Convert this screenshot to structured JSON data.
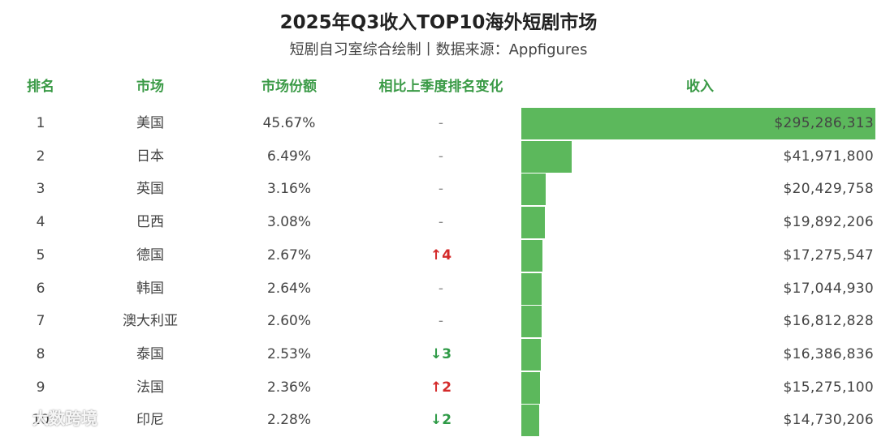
{
  "chart_data": {
    "type": "table",
    "title": "2025年Q3收入TOP10海外短剧市场",
    "subtitle": "短剧自习室综合绘制丨数据来源：Appfigures",
    "columns": [
      "排名",
      "市场",
      "市场份额",
      "相比上季度排名变化",
      "收入"
    ],
    "rows": [
      {
        "rank": "1",
        "market": "美国",
        "share": "45.67%",
        "change": "-",
        "change_dir": "none",
        "revenue": "$295,286,313",
        "revenue_value": 295286313
      },
      {
        "rank": "2",
        "market": "日本",
        "share": "6.49%",
        "change": "-",
        "change_dir": "none",
        "revenue": "$41,971,800",
        "revenue_value": 41971800
      },
      {
        "rank": "3",
        "market": "英国",
        "share": "3.16%",
        "change": "-",
        "change_dir": "none",
        "revenue": "$20,429,758",
        "revenue_value": 20429758
      },
      {
        "rank": "4",
        "market": "巴西",
        "share": "3.08%",
        "change": "-",
        "change_dir": "none",
        "revenue": "$19,892,206",
        "revenue_value": 19892206
      },
      {
        "rank": "5",
        "market": "德国",
        "share": "2.67%",
        "change": "↑4",
        "change_dir": "up",
        "revenue": "$17,275,547",
        "revenue_value": 17275547
      },
      {
        "rank": "6",
        "market": "韩国",
        "share": "2.64%",
        "change": "-",
        "change_dir": "none",
        "revenue": "$17,044,930",
        "revenue_value": 17044930
      },
      {
        "rank": "7",
        "market": "澳大利亚",
        "share": "2.60%",
        "change": "-",
        "change_dir": "none",
        "revenue": "$16,812,828",
        "revenue_value": 16812828
      },
      {
        "rank": "8",
        "market": "泰国",
        "share": "2.53%",
        "change": "↓3",
        "change_dir": "down",
        "revenue": "$16,386,836",
        "revenue_value": 16386836
      },
      {
        "rank": "9",
        "market": "法国",
        "share": "2.36%",
        "change": "↑2",
        "change_dir": "up",
        "revenue": "$15,275,100",
        "revenue_value": 15275100
      },
      {
        "rank": "10",
        "market": "印尼",
        "share": "2.28%",
        "change": "↓2",
        "change_dir": "down",
        "revenue": "$14,730,206",
        "revenue_value": 14730206
      }
    ],
    "bar_color": "#5cb85c",
    "up_color": "#d42a2a",
    "down_color": "#2e9a46",
    "header_color": "#3a9a46"
  },
  "watermark": {
    "text": "大数跨境",
    "icon": "chat-bubble-icon"
  }
}
